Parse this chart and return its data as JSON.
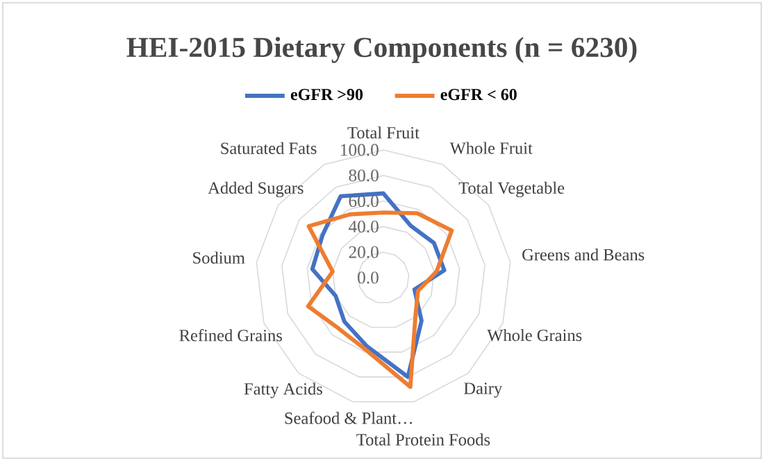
{
  "chart_data": {
    "type": "radar",
    "title": "HEI-2015 Dietary Components (n = 6230)",
    "categories": [
      "Total Fruit",
      "Whole Fruit",
      "Total Vegetable",
      "Greens and Beans",
      "Whole Grains",
      "Dairy",
      "Total Protein Foods",
      "Seafood & Plant…",
      "Fatty Acids",
      "Refined Grains",
      "Sodium",
      "Added Sugars",
      "Saturated Fats"
    ],
    "series": [
      {
        "name": "eGFR >90",
        "color": "#4472c4",
        "values": [
          66,
          46,
          48,
          48,
          26,
          45,
          80,
          55,
          46,
          40,
          56,
          58,
          72
        ]
      },
      {
        "name": "eGFR < 60",
        "color": "#ed7d31",
        "values": [
          51,
          57,
          65,
          42,
          29,
          38,
          88,
          58,
          53,
          63,
          40,
          71,
          56
        ]
      }
    ],
    "ylim": [
      0,
      100
    ],
    "yticks": [
      {
        "value": 0,
        "label": "0.0"
      },
      {
        "value": 20,
        "label": "20.0"
      },
      {
        "value": 40,
        "label": "40.0"
      },
      {
        "value": 60,
        "label": "60.0"
      },
      {
        "value": 80,
        "label": "80.0"
      },
      {
        "value": 100,
        "label": "100.0"
      }
    ],
    "grid": true,
    "legend": "top",
    "marker": "none",
    "line_style": "solid"
  }
}
